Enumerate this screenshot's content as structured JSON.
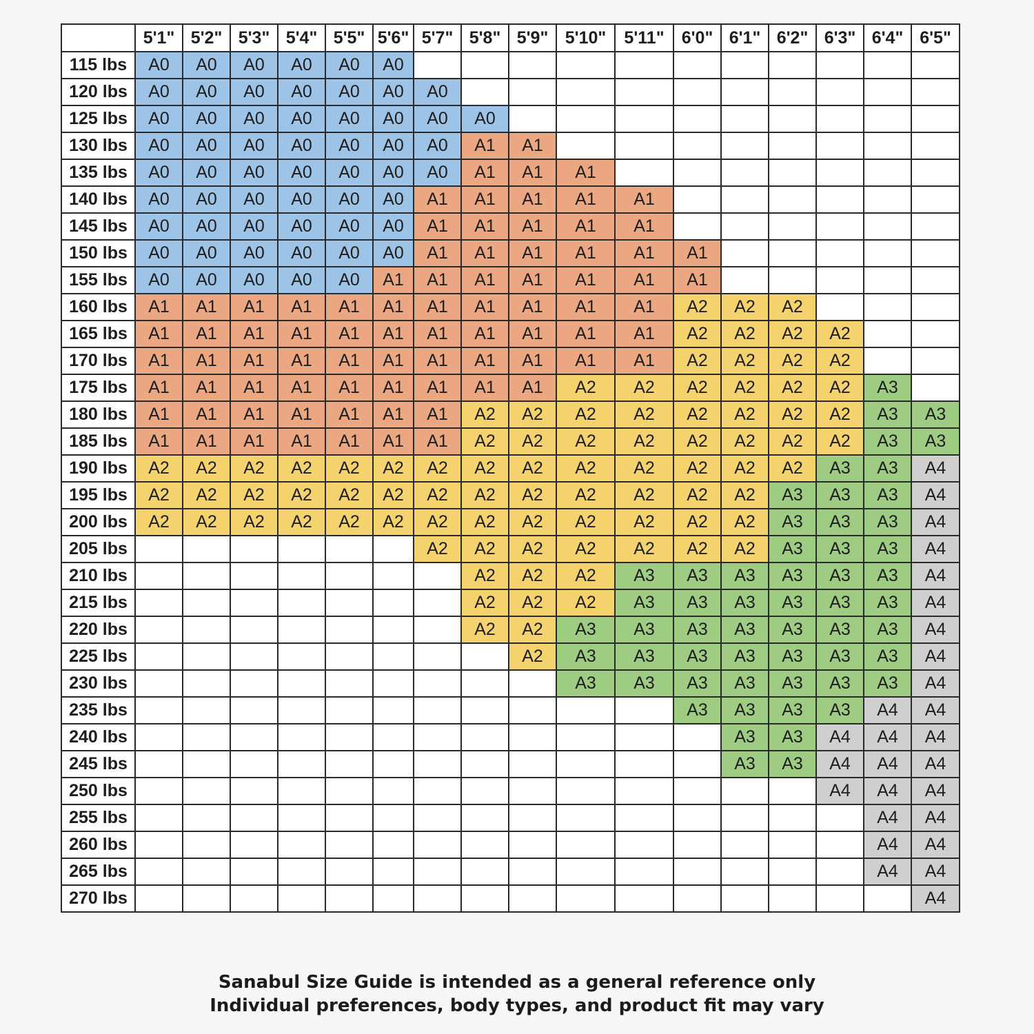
{
  "chart_data": {
    "type": "table",
    "corner": "",
    "heights": [
      "5'1\"",
      "5'2\"",
      "5'3\"",
      "5'4\"",
      "5'5\"",
      "5'6\"",
      "5'7\"",
      "5'8\"",
      "5'9\"",
      "5'10\"",
      "5'11\"",
      "6'0\"",
      "6'1\"",
      "6'2\"",
      "6'3\"",
      "6'4\"",
      "6'5\""
    ],
    "weights": [
      "115 lbs",
      "120 lbs",
      "125 lbs",
      "130 lbs",
      "135 lbs",
      "140 lbs",
      "145 lbs",
      "150 lbs",
      "155 lbs",
      "160 lbs",
      "165 lbs",
      "170 lbs",
      "175 lbs",
      "180 lbs",
      "185 lbs",
      "190 lbs",
      "195 lbs",
      "200 lbs",
      "205 lbs",
      "210 lbs",
      "215 lbs",
      "220 lbs",
      "225 lbs",
      "230 lbs",
      "235 lbs",
      "240 lbs",
      "245 lbs",
      "250 lbs",
      "255 lbs",
      "260 lbs",
      "265 lbs",
      "270 lbs"
    ],
    "cells": [
      [
        "A0",
        "A0",
        "A0",
        "A0",
        "A0",
        "A0",
        "",
        "",
        "",
        "",
        "",
        "",
        "",
        "",
        "",
        "",
        ""
      ],
      [
        "A0",
        "A0",
        "A0",
        "A0",
        "A0",
        "A0",
        "A0",
        "",
        "",
        "",
        "",
        "",
        "",
        "",
        "",
        "",
        ""
      ],
      [
        "A0",
        "A0",
        "A0",
        "A0",
        "A0",
        "A0",
        "A0",
        "A0",
        "",
        "",
        "",
        "",
        "",
        "",
        "",
        "",
        ""
      ],
      [
        "A0",
        "A0",
        "A0",
        "A0",
        "A0",
        "A0",
        "A0",
        "A1",
        "A1",
        "",
        "",
        "",
        "",
        "",
        "",
        "",
        ""
      ],
      [
        "A0",
        "A0",
        "A0",
        "A0",
        "A0",
        "A0",
        "A0",
        "A1",
        "A1",
        "A1",
        "",
        "",
        "",
        "",
        "",
        "",
        ""
      ],
      [
        "A0",
        "A0",
        "A0",
        "A0",
        "A0",
        "A0",
        "A1",
        "A1",
        "A1",
        "A1",
        "A1",
        "",
        "",
        "",
        "",
        "",
        ""
      ],
      [
        "A0",
        "A0",
        "A0",
        "A0",
        "A0",
        "A0",
        "A1",
        "A1",
        "A1",
        "A1",
        "A1",
        "",
        "",
        "",
        "",
        "",
        ""
      ],
      [
        "A0",
        "A0",
        "A0",
        "A0",
        "A0",
        "A0",
        "A1",
        "A1",
        "A1",
        "A1",
        "A1",
        "A1",
        "",
        "",
        "",
        "",
        ""
      ],
      [
        "A0",
        "A0",
        "A0",
        "A0",
        "A0",
        "A1",
        "A1",
        "A1",
        "A1",
        "A1",
        "A1",
        "A1",
        "",
        "",
        "",
        "",
        ""
      ],
      [
        "A1",
        "A1",
        "A1",
        "A1",
        "A1",
        "A1",
        "A1",
        "A1",
        "A1",
        "A1",
        "A1",
        "A2",
        "A2",
        "A2",
        "",
        "",
        ""
      ],
      [
        "A1",
        "A1",
        "A1",
        "A1",
        "A1",
        "A1",
        "A1",
        "A1",
        "A1",
        "A1",
        "A1",
        "A2",
        "A2",
        "A2",
        "A2",
        "",
        ""
      ],
      [
        "A1",
        "A1",
        "A1",
        "A1",
        "A1",
        "A1",
        "A1",
        "A1",
        "A1",
        "A1",
        "A1",
        "A2",
        "A2",
        "A2",
        "A2",
        "",
        ""
      ],
      [
        "A1",
        "A1",
        "A1",
        "A1",
        "A1",
        "A1",
        "A1",
        "A1",
        "A1",
        "A2",
        "A2",
        "A2",
        "A2",
        "A2",
        "A2",
        "A3",
        ""
      ],
      [
        "A1",
        "A1",
        "A1",
        "A1",
        "A1",
        "A1",
        "A1",
        "A2",
        "A2",
        "A2",
        "A2",
        "A2",
        "A2",
        "A2",
        "A2",
        "A3",
        "A3"
      ],
      [
        "A1",
        "A1",
        "A1",
        "A1",
        "A1",
        "A1",
        "A1",
        "A2",
        "A2",
        "A2",
        "A2",
        "A2",
        "A2",
        "A2",
        "A2",
        "A3",
        "A3"
      ],
      [
        "A2",
        "A2",
        "A2",
        "A2",
        "A2",
        "A2",
        "A2",
        "A2",
        "A2",
        "A2",
        "A2",
        "A2",
        "A2",
        "A2",
        "A3",
        "A3",
        "A4"
      ],
      [
        "A2",
        "A2",
        "A2",
        "A2",
        "A2",
        "A2",
        "A2",
        "A2",
        "A2",
        "A2",
        "A2",
        "A2",
        "A2",
        "A3",
        "A3",
        "A3",
        "A4"
      ],
      [
        "A2",
        "A2",
        "A2",
        "A2",
        "A2",
        "A2",
        "A2",
        "A2",
        "A2",
        "A2",
        "A2",
        "A2",
        "A2",
        "A3",
        "A3",
        "A3",
        "A4"
      ],
      [
        "",
        "",
        "",
        "",
        "",
        "",
        "A2",
        "A2",
        "A2",
        "A2",
        "A2",
        "A2",
        "A2",
        "A3",
        "A3",
        "A3",
        "A4"
      ],
      [
        "",
        "",
        "",
        "",
        "",
        "",
        "",
        "A2",
        "A2",
        "A2",
        "A3",
        "A3",
        "A3",
        "A3",
        "A3",
        "A3",
        "A4"
      ],
      [
        "",
        "",
        "",
        "",
        "",
        "",
        "",
        "A2",
        "A2",
        "A2",
        "A3",
        "A3",
        "A3",
        "A3",
        "A3",
        "A3",
        "A4"
      ],
      [
        "",
        "",
        "",
        "",
        "",
        "",
        "",
        "A2",
        "A2",
        "A3",
        "A3",
        "A3",
        "A3",
        "A3",
        "A3",
        "A3",
        "A4"
      ],
      [
        "",
        "",
        "",
        "",
        "",
        "",
        "",
        "",
        "A2",
        "A3",
        "A3",
        "A3",
        "A3",
        "A3",
        "A3",
        "A3",
        "A4"
      ],
      [
        "",
        "",
        "",
        "",
        "",
        "",
        "",
        "",
        "",
        "A3",
        "A3",
        "A3",
        "A3",
        "A3",
        "A3",
        "A3",
        "A4"
      ],
      [
        "",
        "",
        "",
        "",
        "",
        "",
        "",
        "",
        "",
        "",
        "",
        "A3",
        "A3",
        "A3",
        "A3",
        "A4",
        "A4"
      ],
      [
        "",
        "",
        "",
        "",
        "",
        "",
        "",
        "",
        "",
        "",
        "",
        "",
        "A3",
        "A3",
        "A4",
        "A4",
        "A4"
      ],
      [
        "",
        "",
        "",
        "",
        "",
        "",
        "",
        "",
        "",
        "",
        "",
        "",
        "A3",
        "A3",
        "A4",
        "A4",
        "A4"
      ],
      [
        "",
        "",
        "",
        "",
        "",
        "",
        "",
        "",
        "",
        "",
        "",
        "",
        "",
        "",
        "A4",
        "A4",
        "A4"
      ],
      [
        "",
        "",
        "",
        "",
        "",
        "",
        "",
        "",
        "",
        "",
        "",
        "",
        "",
        "",
        "",
        "A4",
        "A4"
      ],
      [
        "",
        "",
        "",
        "",
        "",
        "",
        "",
        "",
        "",
        "",
        "",
        "",
        "",
        "",
        "",
        "A4",
        "A4"
      ],
      [
        "",
        "",
        "",
        "",
        "",
        "",
        "",
        "",
        "",
        "",
        "",
        "",
        "",
        "",
        "",
        "A4",
        "A4"
      ],
      [
        "",
        "",
        "",
        "",
        "",
        "",
        "",
        "",
        "",
        "",
        "",
        "",
        "",
        "",
        "",
        "",
        "A4"
      ]
    ],
    "size_colors": {
      "A0": "#9dc3e6",
      "A1": "#eba781",
      "A2": "#f4d36f",
      "A3": "#9dcc82",
      "A4": "#cfcfcf"
    }
  },
  "footer": {
    "line1": "Sanabul Size Guide is intended as a general reference only",
    "line2": "Individual preferences, body types, and product fit may vary"
  }
}
